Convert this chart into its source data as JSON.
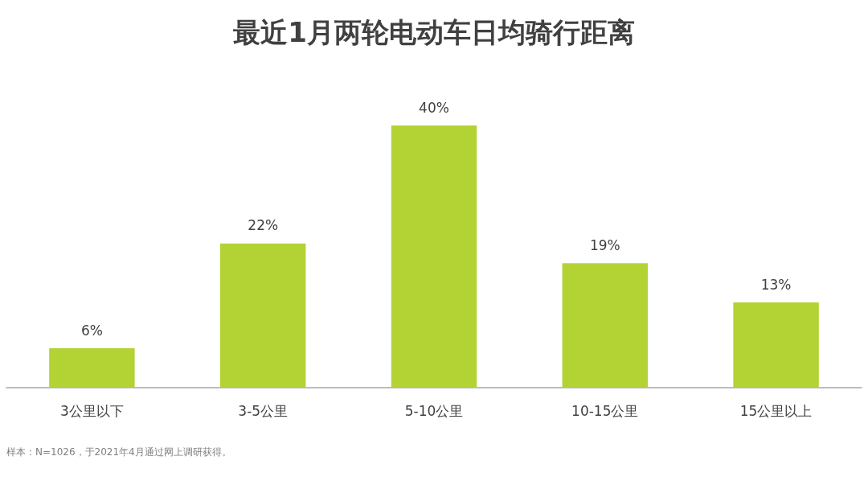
{
  "chart_data": {
    "type": "bar",
    "title": "最近1月两轮电动车日均骑行距离",
    "categories": [
      "3公里以下",
      "3-5公里",
      "5-10公里",
      "10-15公里",
      "15公里以上"
    ],
    "values": [
      6,
      22,
      40,
      19,
      13
    ],
    "value_labels": [
      "6%",
      "22%",
      "40%",
      "19%",
      "13%"
    ],
    "color": "#b3d334",
    "annotations": [
      "样本：N=1026，于2021年4月通过网上调研获得。"
    ]
  }
}
